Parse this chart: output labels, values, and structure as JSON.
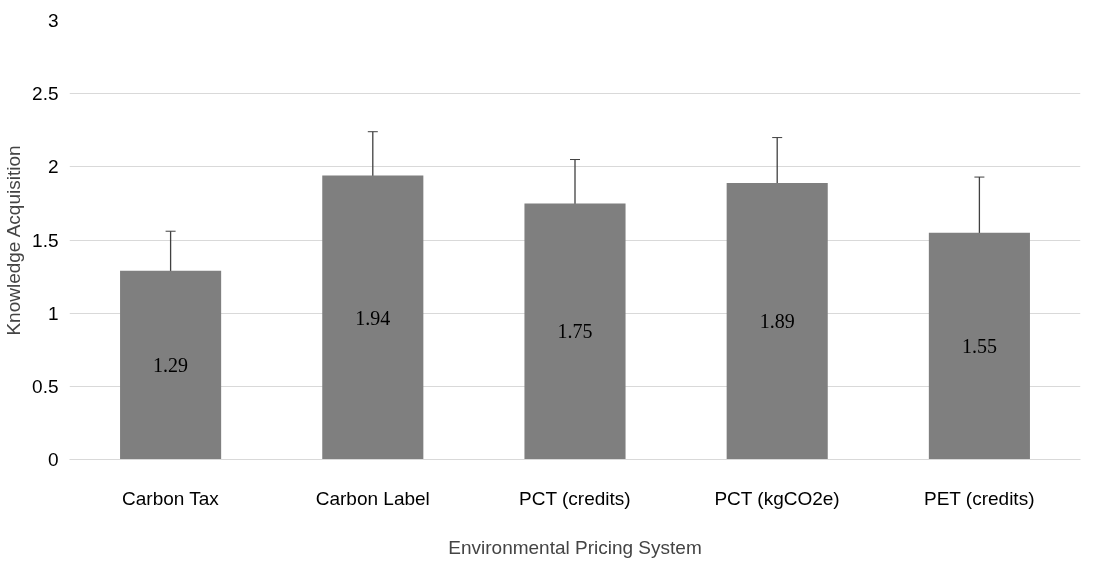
{
  "chart_data": {
    "type": "bar",
    "xlabel": "Environmental Pricing System",
    "ylabel": "Knowledge Acquisition",
    "categories": [
      "Carbon Tax",
      "Carbon Label",
      "PCT (credits)",
      "PCT (kgCO2e)",
      "PET (credits)"
    ],
    "values": [
      1.29,
      1.94,
      1.75,
      1.89,
      1.55
    ],
    "errors": [
      0.27,
      0.3,
      0.3,
      0.31,
      0.38
    ],
    "color": "#7f7f7f",
    "ylim": [
      0,
      3
    ],
    "yticks": [
      0,
      0.5,
      1,
      1.5,
      2,
      2.5,
      3
    ],
    "grid": "y",
    "data_labels": true
  }
}
